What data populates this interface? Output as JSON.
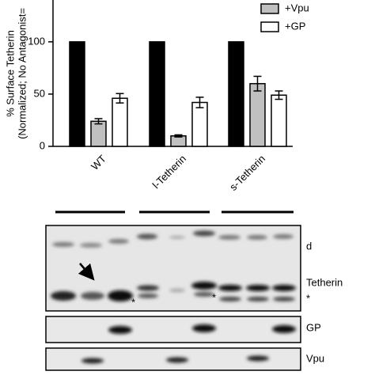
{
  "chart_data": {
    "type": "bar",
    "y_label": [
      "% Surface Tetherin",
      "(Normalized; No Antagonist="
    ],
    "categories": [
      "WT",
      "l-Tetherin",
      "s-Tetherin"
    ],
    "series": [
      {
        "color": "#000000",
        "values": [
          100,
          100,
          100
        ]
      },
      {
        "name": "+Vpu",
        "color": "#c0c0c0",
        "values": [
          24,
          10,
          60
        ],
        "errors": [
          2.5,
          1,
          7
        ]
      },
      {
        "name": "+GP",
        "color": "#ffffff",
        "values": [
          46,
          42,
          49
        ],
        "errors": [
          4.5,
          5,
          4
        ]
      }
    ],
    "ylim": [
      0,
      140
    ],
    "yticks": [
      0,
      50,
      100
    ],
    "legend": "top-right"
  },
  "blot": {
    "labels": [
      "d",
      "Tetherin",
      "*",
      "GP",
      "Vpu"
    ],
    "asterisks": [
      "*",
      "*"
    ]
  }
}
